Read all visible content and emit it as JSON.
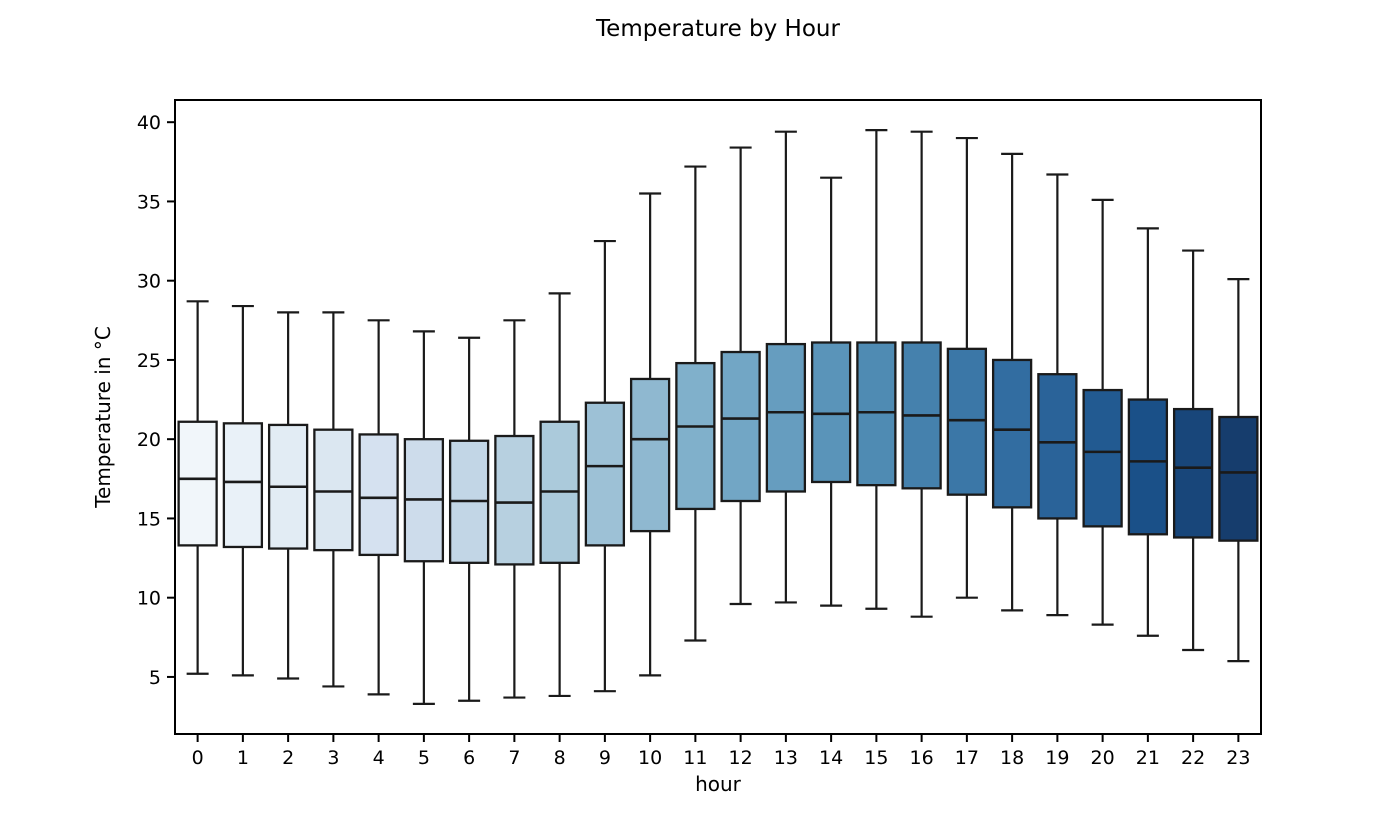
{
  "chart_data": {
    "type": "box",
    "title": "Temperature by Hour",
    "xlabel": "hour",
    "ylabel": "Temperature in °C",
    "categories": [
      "0",
      "1",
      "2",
      "3",
      "4",
      "5",
      "6",
      "7",
      "8",
      "9",
      "10",
      "11",
      "12",
      "13",
      "14",
      "15",
      "16",
      "17",
      "18",
      "19",
      "20",
      "21",
      "22",
      "23"
    ],
    "yticks": [
      5,
      10,
      15,
      20,
      25,
      30,
      35,
      40
    ],
    "ylim": [
      1.4,
      41.4
    ],
    "grid": false,
    "legend": "none",
    "palette_name": "Blues",
    "box_edge_color": "#1a1a1a",
    "boxes": [
      {
        "hour": "0",
        "whislo": 5.2,
        "q1": 13.3,
        "median": 17.5,
        "q3": 21.1,
        "whishi": 28.7,
        "color": "#f1f6fa"
      },
      {
        "hour": "1",
        "whislo": 5.1,
        "q1": 13.2,
        "median": 17.3,
        "q3": 21.0,
        "whishi": 28.4,
        "color": "#e9f1f8"
      },
      {
        "hour": "2",
        "whislo": 4.9,
        "q1": 13.1,
        "median": 17.0,
        "q3": 20.9,
        "whishi": 28.0,
        "color": "#e2ecf4"
      },
      {
        "hour": "3",
        "whislo": 4.4,
        "q1": 13.0,
        "median": 16.7,
        "q3": 20.6,
        "whishi": 28.0,
        "color": "#dbe7f1"
      },
      {
        "hour": "4",
        "whislo": 3.9,
        "q1": 12.7,
        "median": 16.3,
        "q3": 20.3,
        "whishi": 27.5,
        "color": "#d5e1f0"
      },
      {
        "hour": "5",
        "whislo": 3.3,
        "q1": 12.3,
        "median": 16.2,
        "q3": 20.0,
        "whishi": 26.8,
        "color": "#cddceb"
      },
      {
        "hour": "6",
        "whislo": 3.5,
        "q1": 12.2,
        "median": 16.1,
        "q3": 19.9,
        "whishi": 26.4,
        "color": "#c2d6e6"
      },
      {
        "hour": "7",
        "whislo": 3.7,
        "q1": 12.1,
        "median": 16.0,
        "q3": 20.2,
        "whishi": 27.5,
        "color": "#b7d0e0"
      },
      {
        "hour": "8",
        "whislo": 3.8,
        "q1": 12.2,
        "median": 16.7,
        "q3": 21.1,
        "whishi": 29.2,
        "color": "#abcadb"
      },
      {
        "hour": "9",
        "whislo": 4.1,
        "q1": 13.3,
        "median": 18.3,
        "q3": 22.3,
        "whishi": 32.5,
        "color": "#9dc1d6"
      },
      {
        "hour": "10",
        "whislo": 5.1,
        "q1": 14.2,
        "median": 20.0,
        "q3": 23.8,
        "whishi": 35.5,
        "color": "#8fb8d0"
      },
      {
        "hour": "11",
        "whislo": 7.3,
        "q1": 15.6,
        "median": 20.8,
        "q3": 24.8,
        "whishi": 37.2,
        "color": "#80b0cb"
      },
      {
        "hour": "12",
        "whislo": 9.6,
        "q1": 16.1,
        "median": 21.3,
        "q3": 25.5,
        "whishi": 38.4,
        "color": "#72a6c5"
      },
      {
        "hour": "13",
        "whislo": 9.7,
        "q1": 16.7,
        "median": 21.7,
        "q3": 26.0,
        "whishi": 39.4,
        "color": "#669dbf"
      },
      {
        "hour": "14",
        "whislo": 9.5,
        "q1": 17.3,
        "median": 21.6,
        "q3": 26.1,
        "whishi": 36.5,
        "color": "#5a94b9"
      },
      {
        "hour": "15",
        "whislo": 9.3,
        "q1": 17.1,
        "median": 21.7,
        "q3": 26.1,
        "whishi": 39.5,
        "color": "#4f8bb3"
      },
      {
        "hour": "16",
        "whislo": 8.8,
        "q1": 16.9,
        "median": 21.5,
        "q3": 26.1,
        "whishi": 39.4,
        "color": "#4581ad"
      },
      {
        "hour": "17",
        "whislo": 10.0,
        "q1": 16.5,
        "median": 21.2,
        "q3": 25.7,
        "whishi": 39.0,
        "color": "#3b77a7"
      },
      {
        "hour": "18",
        "whislo": 9.2,
        "q1": 15.7,
        "median": 20.6,
        "q3": 25.0,
        "whishi": 38.0,
        "color": "#326da1"
      },
      {
        "hour": "19",
        "whislo": 8.9,
        "q1": 15.0,
        "median": 19.8,
        "q3": 24.1,
        "whishi": 36.7,
        "color": "#2a6399"
      },
      {
        "hour": "20",
        "whislo": 8.3,
        "q1": 14.5,
        "median": 19.2,
        "q3": 23.1,
        "whishi": 35.1,
        "color": "#225a91"
      },
      {
        "hour": "21",
        "whislo": 7.6,
        "q1": 14.0,
        "median": 18.6,
        "q3": 22.5,
        "whishi": 33.3,
        "color": "#1a5088"
      },
      {
        "hour": "22",
        "whislo": 6.7,
        "q1": 13.8,
        "median": 18.2,
        "q3": 21.9,
        "whishi": 31.9,
        "color": "#18467a"
      },
      {
        "hour": "23",
        "whislo": 6.0,
        "q1": 13.6,
        "median": 17.9,
        "q3": 21.4,
        "whishi": 30.1,
        "color": "#163d6d"
      }
    ]
  }
}
